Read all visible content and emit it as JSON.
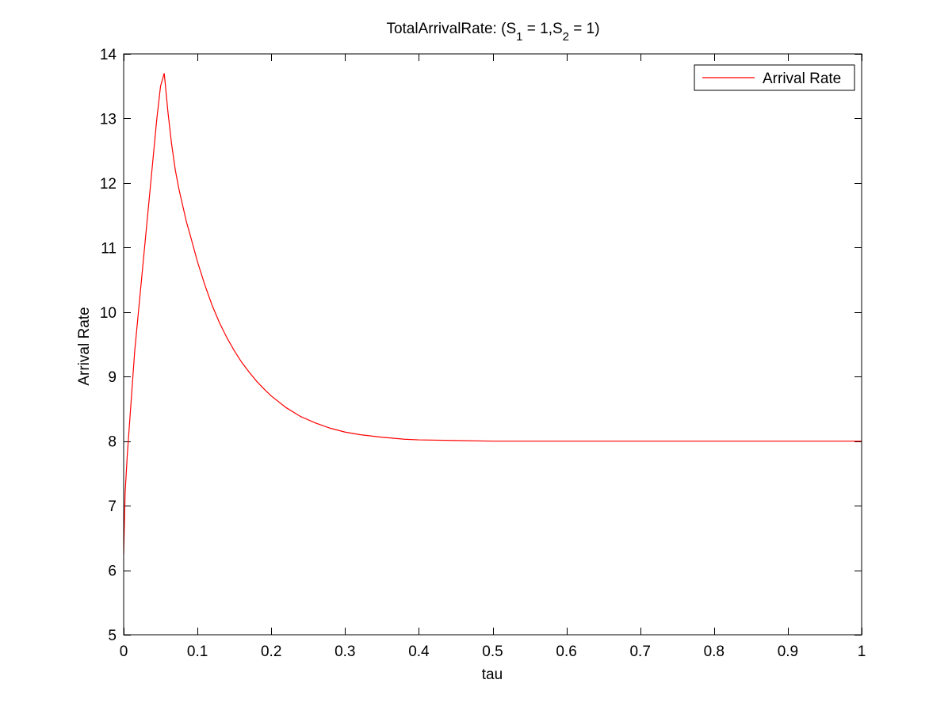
{
  "chart_data": {
    "type": "line",
    "title_parts": [
      {
        "t": "TotalArrivalRate: (S",
        "sub": false
      },
      {
        "t": "1",
        "sub": true
      },
      {
        "t": " = 1,S",
        "sub": false
      },
      {
        "t": "2",
        "sub": true
      },
      {
        "t": " = 1)",
        "sub": false
      }
    ],
    "xlabel": "tau",
    "ylabel": "Arrival Rate",
    "xlim": [
      0,
      1
    ],
    "ylim": [
      5,
      14
    ],
    "x_ticks": [
      0,
      0.1,
      0.2,
      0.3,
      0.4,
      0.5,
      0.6,
      0.7,
      0.8,
      0.9,
      1
    ],
    "x_tick_labels": [
      "0",
      "0.1",
      "0.2",
      "0.3",
      "0.4",
      "0.5",
      "0.6",
      "0.7",
      "0.8",
      "0.9",
      "1"
    ],
    "y_ticks": [
      5,
      6,
      7,
      8,
      9,
      10,
      11,
      12,
      13,
      14
    ],
    "y_tick_labels": [
      "5",
      "6",
      "7",
      "8",
      "9",
      "10",
      "11",
      "12",
      "13",
      "14"
    ],
    "grid": false,
    "legend_position": "top-right",
    "colors": {
      "series": "#ff0000",
      "axes": "#000000",
      "background": "#ffffff"
    },
    "series": [
      {
        "name": "Arrival Rate",
        "x": [
          0.0,
          0.002,
          0.005,
          0.01,
          0.015,
          0.02,
          0.025,
          0.03,
          0.035,
          0.04,
          0.045,
          0.05,
          0.055,
          0.06,
          0.065,
          0.07,
          0.075,
          0.08,
          0.085,
          0.09,
          0.1,
          0.11,
          0.12,
          0.13,
          0.14,
          0.15,
          0.16,
          0.17,
          0.18,
          0.19,
          0.2,
          0.22,
          0.24,
          0.26,
          0.28,
          0.3,
          0.32,
          0.35,
          0.38,
          0.4,
          0.45,
          0.5,
          0.55,
          0.6,
          0.7,
          0.8,
          0.9,
          1.0
        ],
        "y": [
          6.25,
          7.2,
          7.8,
          8.6,
          9.4,
          10.0,
          10.6,
          11.2,
          11.8,
          12.4,
          13.0,
          13.5,
          13.7,
          13.1,
          12.6,
          12.2,
          11.9,
          11.65,
          11.4,
          11.2,
          10.78,
          10.42,
          10.1,
          9.83,
          9.6,
          9.4,
          9.22,
          9.07,
          8.93,
          8.81,
          8.7,
          8.52,
          8.38,
          8.28,
          8.2,
          8.14,
          8.1,
          8.06,
          8.03,
          8.02,
          8.01,
          8.0,
          8.0,
          8.0,
          8.0,
          8.0,
          8.0,
          8.0
        ]
      }
    ]
  }
}
